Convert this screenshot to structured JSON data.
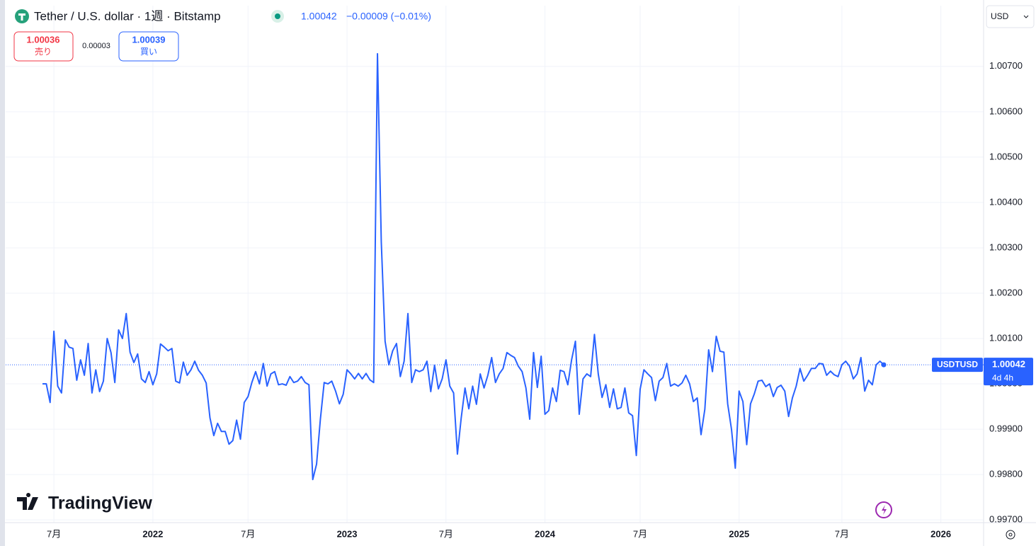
{
  "header": {
    "title": "Tether / U.S. dollar · 1週 · Bitstamp",
    "change": "−0.00009 (−0.01%)",
    "sell": {
      "price": "1.00036",
      "label": "売り"
    },
    "spread": "0.00003",
    "buy": {
      "price": "1.00039",
      "label": "買い"
    },
    "currency": "USD",
    "logo": "TradingView"
  },
  "chart_data": {
    "type": "line",
    "symbol": "USDTUSD",
    "countdown": "4d 4h",
    "last_price": 1.00042,
    "ylim": [
      0.99694,
      1.00834
    ],
    "yticks": [
      {
        "value": 0.997,
        "label": "0.99700"
      },
      {
        "value": 0.998,
        "label": "0.99800"
      },
      {
        "value": 0.999,
        "label": "0.99900"
      },
      {
        "value": 1.0,
        "label": "1.00000"
      },
      {
        "value": 1.001,
        "label": "1.00100"
      },
      {
        "value": 1.002,
        "label": "1.00200"
      },
      {
        "value": 1.003,
        "label": "1.00300"
      },
      {
        "value": 1.004,
        "label": "1.00400"
      },
      {
        "value": 1.005,
        "label": "1.00500"
      },
      {
        "value": 1.006,
        "label": "1.00600"
      },
      {
        "value": 1.007,
        "label": "1.00700"
      }
    ],
    "grid": true,
    "categories": [
      null,
      null,
      null,
      "7月",
      null,
      null,
      null,
      null,
      null,
      null,
      null,
      null,
      null,
      null,
      null,
      null,
      null,
      null,
      null,
      null,
      null,
      null,
      null,
      null,
      null,
      null,
      null,
      null,
      null,
      "2022",
      null,
      null,
      null,
      null,
      null,
      null,
      null,
      null,
      null,
      null,
      null,
      null,
      null,
      null,
      null,
      null,
      null,
      null,
      null,
      null,
      null,
      null,
      null,
      null,
      "7月",
      null,
      null,
      null,
      null,
      null,
      null,
      null,
      null,
      null,
      null,
      null,
      null,
      null,
      null,
      null,
      null,
      null,
      null,
      null,
      null,
      null,
      null,
      null,
      null,
      null,
      "2023",
      null,
      null,
      null,
      null,
      null,
      null,
      null,
      null,
      null,
      null,
      null,
      null,
      null,
      null,
      null,
      null,
      null,
      null,
      null,
      null,
      null,
      null,
      null,
      null,
      null,
      "7月",
      null,
      null,
      null,
      null,
      null,
      null,
      null,
      null,
      null,
      null,
      null,
      null,
      null,
      null,
      null,
      null,
      null,
      null,
      null,
      null,
      null,
      null,
      null,
      null,
      null,
      "2024",
      null,
      null,
      null,
      null,
      null,
      null,
      null,
      null,
      null,
      null,
      null,
      null,
      null,
      null,
      null,
      null,
      null,
      null,
      null,
      null,
      null,
      null,
      null,
      null,
      "7月",
      null,
      null,
      null,
      null,
      null,
      null,
      null,
      null,
      null,
      null,
      null,
      null,
      null,
      null,
      null,
      null,
      null,
      null,
      null,
      null,
      null,
      null,
      null,
      null,
      null,
      "2025",
      null,
      null,
      null,
      null,
      null,
      null,
      null,
      null,
      null,
      null,
      null,
      null,
      null,
      null,
      null,
      null,
      null,
      null,
      null,
      null,
      null,
      null,
      null,
      null,
      null,
      null,
      "7月",
      null,
      null,
      null,
      null,
      null,
      null,
      null,
      null,
      null,
      null,
      null,
      null,
      null,
      null,
      null,
      null,
      null,
      null,
      null,
      null,
      null,
      null,
      null,
      null,
      null,
      "2026"
    ],
    "series": [
      {
        "name": "USDTUSD",
        "color": "#2962ff",
        "values": [
          1.0,
          1.0,
          0.99959,
          1.00116,
          0.99995,
          0.9998,
          1.00097,
          1.00081,
          1.00078,
          1.00008,
          1.00053,
          1.00019,
          1.00089,
          0.9998,
          1.00031,
          0.99983,
          1.00006,
          1.001,
          1.00069,
          1.00003,
          1.00119,
          1.001,
          1.00155,
          1.0007,
          1.00047,
          1.00066,
          1.00011,
          1.00003,
          1.00027,
          0.99998,
          1.00022,
          1.00088,
          1.00081,
          1.00073,
          1.00078,
          1.00006,
          1.00002,
          1.00048,
          1.00019,
          1.00031,
          1.0005,
          1.0003,
          1.00019,
          1.00002,
          0.99925,
          0.99886,
          0.99913,
          0.99895,
          0.99895,
          0.99867,
          0.99875,
          0.9992,
          0.99878,
          0.99959,
          0.99972,
          1.00003,
          1.00027,
          1.0,
          1.00045,
          0.99995,
          1.00022,
          1.00027,
          0.99998,
          1.0,
          0.99997,
          1.00016,
          1.00003,
          1.00006,
          1.00016,
          1.00003,
          0.99998,
          0.99789,
          0.99823,
          0.99922,
          1.00003,
          1.0,
          1.00006,
          0.99984,
          0.99956,
          0.99977,
          1.00031,
          1.00022,
          1.00011,
          1.00023,
          1.00011,
          1.00023,
          1.00009,
          1.00003,
          1.00728,
          1.00313,
          1.00094,
          1.00042,
          1.00073,
          1.00089,
          1.00016,
          1.0005,
          1.00155,
          1.00003,
          1.00031,
          1.00027,
          1.00031,
          1.0005,
          0.99983,
          1.00041,
          0.99989,
          1.00011,
          1.00053,
          0.99995,
          0.9998,
          0.99845,
          0.99925,
          0.99991,
          0.99945,
          0.99995,
          0.99955,
          1.00022,
          0.99991,
          1.00019,
          1.00058,
          1.00003,
          1.00022,
          1.00034,
          1.00069,
          1.00063,
          1.00058,
          1.00039,
          1.00027,
          0.99991,
          0.99922,
          1.00069,
          0.99992,
          1.00061,
          0.99933,
          0.99941,
          0.99991,
          0.99961,
          1.0003,
          1.00027,
          0.99998,
          1.00053,
          1.00094,
          0.99933,
          1.00011,
          1.00022,
          1.00016,
          1.00109,
          1.00022,
          0.9997,
          0.99998,
          0.99948,
          0.99989,
          0.99945,
          0.99948,
          0.99991,
          0.99936,
          0.9993,
          0.99842,
          0.99988,
          1.00031,
          1.00022,
          1.00014,
          0.99963,
          1.00006,
          1.00014,
          1.00045,
          0.99995,
          1.0,
          0.99995,
          1.00002,
          1.00019,
          1.0,
          0.99961,
          0.99969,
          0.99888,
          0.99944,
          1.00075,
          1.00027,
          1.00105,
          1.00072,
          1.0007,
          0.99956,
          0.999,
          0.99814,
          0.99984,
          0.99961,
          0.99866,
          0.99956,
          0.99978,
          1.00006,
          1.00008,
          0.99994,
          1.0,
          0.99972,
          0.99992,
          0.99997,
          0.99984,
          0.99928,
          0.99969,
          0.99995,
          1.00034,
          1.00006,
          1.00019,
          1.00034,
          1.00034,
          1.00045,
          1.00044,
          1.00019,
          1.00028,
          1.0002,
          1.00016,
          1.00042,
          1.0005,
          1.00039,
          1.00011,
          1.00022,
          1.00058,
          0.99984,
          1.00008,
          0.99998,
          1.00042,
          1.0005,
          1.00042,
          null,
          null,
          null,
          null,
          null,
          null,
          null,
          null,
          null,
          null,
          null,
          null,
          null,
          null,
          null
        ]
      }
    ]
  }
}
